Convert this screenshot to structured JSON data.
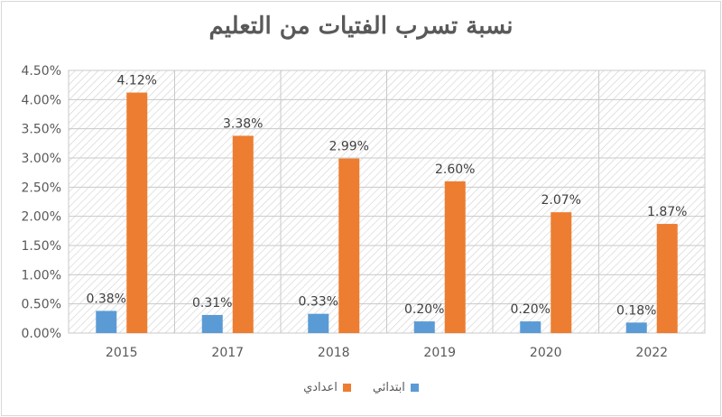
{
  "chart_data": {
    "type": "bar",
    "title": "نسبة تسرب الفتيات من التعليم",
    "categories": [
      "2015",
      "2017",
      "2018",
      "2019",
      "2020",
      "2022"
    ],
    "series": [
      {
        "name": "ابتدائي",
        "color": "#5B9BD5",
        "values": [
          0.38,
          0.31,
          0.33,
          0.2,
          0.2,
          0.18
        ],
        "labels": [
          "0.38%",
          "0.31%",
          "0.33%",
          "0.20%",
          "0.20%",
          "0.18%"
        ]
      },
      {
        "name": "اعدادي",
        "color": "#ED7D31",
        "values": [
          4.12,
          3.38,
          2.99,
          2.6,
          2.07,
          1.87
        ],
        "labels": [
          "4.12%",
          "3.38%",
          "2.99%",
          "2.60%",
          "2.07%",
          "1.87%"
        ]
      }
    ],
    "y_ticks": [
      "0.00%",
      "0.50%",
      "1.00%",
      "1.50%",
      "2.00%",
      "2.50%",
      "3.00%",
      "3.50%",
      "4.00%",
      "4.50%"
    ],
    "ylim": [
      0,
      4.5
    ],
    "grid": true,
    "legend": "bottom"
  }
}
